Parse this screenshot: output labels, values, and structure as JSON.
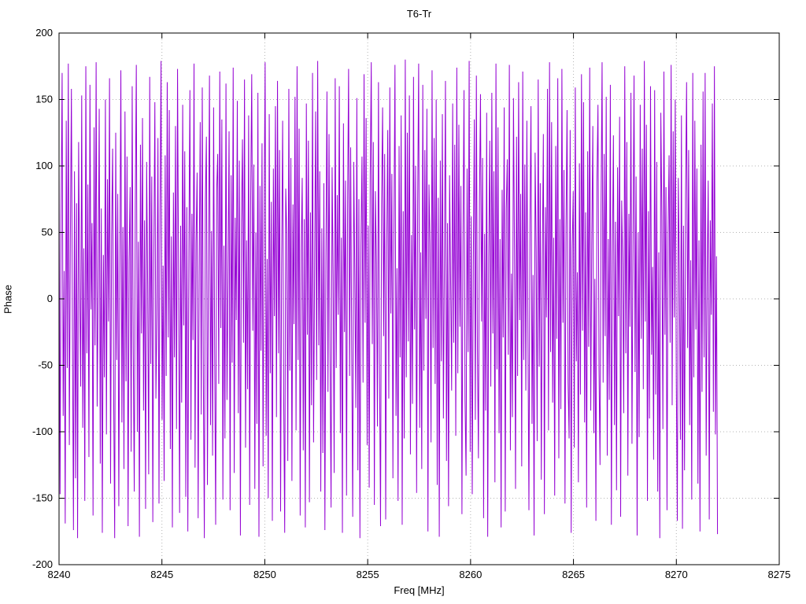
{
  "chart_data": {
    "type": "line",
    "title": "T6-Tr",
    "xlabel": "Freq [MHz]",
    "ylabel": "Phase",
    "xlim": [
      8240,
      8275
    ],
    "ylim": [
      -200,
      200
    ],
    "xticks": [
      8240,
      8245,
      8250,
      8255,
      8260,
      8265,
      8270,
      8275
    ],
    "yticks": [
      -200,
      -150,
      -100,
      -50,
      0,
      50,
      100,
      150,
      200
    ],
    "grid": true,
    "legend": "none",
    "line_color": "#9400D3",
    "grid_color": "#b3b3b3",
    "series": [
      {
        "name": "T6-Tr",
        "x_start": 8240,
        "x_end": 8272,
        "n_points": 640,
        "y_range": [
          -180,
          180
        ],
        "values": [
          102,
          -147,
          63,
          170,
          -88,
          21,
          -169,
          134,
          -52,
          177,
          -110,
          45,
          158,
          -23,
          -174,
          96,
          -135,
          72,
          -180,
          118,
          14,
          -66,
          153,
          -97,
          38,
          -152,
          175,
          -41,
          86,
          -119,
          161,
          -8,
          57,
          -163,
          129,
          -35,
          178,
          -81,
          10,
          143,
          -124,
          68,
          -176,
          33,
          -59,
          150,
          -102,
          90,
          -17,
          166,
          -139,
          48,
          113,
          -71,
          -180,
          125,
          -46,
          79,
          -156,
          19,
          172,
          -93,
          54,
          -128,
          141,
          -62,
          107,
          -171,
          28,
          84,
          -115,
          160,
          -37,
          -145,
          70,
          176,
          -100,
          43,
          -179,
          116,
          -26,
          136,
          -84,
          59,
          -158,
          103,
          11,
          -132,
          167,
          -49,
          92,
          -168,
          34,
          148,
          -75,
          -12,
          121,
          -154,
          66,
          179,
          -91,
          25,
          -137,
          108,
          -58,
          163,
          -29,
          142,
          -113,
          47,
          -172,
          80,
          -44,
          130,
          -98,
          173,
          15,
          -161,
          55,
          -78,
          146,
          -20,
          111,
          -149,
          69,
          -175,
          37,
          157,
          -106,
          64,
          -31,
          177,
          -127,
          42,
          95,
          -165,
          18,
          133,
          -87,
          159,
          -53,
          -180,
          74,
          122,
          -140,
          29,
          168,
          -95,
          51,
          -118,
          144,
          -36,
          -170,
          82,
          109,
          -64,
          171,
          -22,
          135,
          -151,
          40,
          -105,
          162,
          -76,
          13,
          126,
          -159,
          93,
          -48,
          174,
          -131,
          61,
          -16,
          149,
          -86,
          104,
          -178,
          58,
          120,
          -33,
          165,
          -112,
          44,
          -68,
          138,
          -155,
          77,
          169,
          -24,
          101,
          -143,
          50,
          -94,
          155,
          -179,
          85,
          -39,
          117,
          -126,
          62,
          178,
          -103,
          30,
          -150,
          139,
          -56,
          73,
          -167,
          98,
          -13,
          145,
          -89,
          164,
          -41,
          112,
          -160,
          26,
          134,
          -72,
          -176,
          83,
          49,
          -122,
          158,
          -54,
          106,
          -137,
          71,
          -19,
          152,
          -99,
          175,
          -46,
          128,
          -163,
          36,
          91,
          -114,
          60,
          -172,
          147,
          -27,
          119,
          -153,
          65,
          -80,
          170,
          -108,
          22,
          141,
          -61,
          179,
          -35,
          96,
          -145,
          53,
          -116,
          87,
          -174,
          31,
          156,
          -70,
          124,
          -42,
          -157,
          99,
          16,
          -131,
          166,
          -52,
          78,
          -12,
          160,
          -101,
          46,
          -176,
          132,
          -25,
          89,
          -148,
          67,
          173,
          -58,
          114,
          -37,
          -164,
          103,
          21,
          -82,
          151,
          -129,
          75,
          -180,
          40,
          107,
          -63,
          169,
          -18,
          136,
          -110,
          55,
          -142,
          92,
          178,
          -34,
          118,
          -155,
          81,
          26,
          -96,
          163,
          -50,
          -171,
          72,
          144,
          -28,
          109,
          -166,
          39,
          127,
          -75,
          159,
          -11,
          94,
          -135,
          52,
          176,
          -88,
          23,
          -152,
          115,
          -44,
          138,
          -170,
          66,
          -105,
          180,
          -59,
          125,
          -32,
          153,
          -117,
          48,
          -79,
          167,
          -23,
          100,
          -146,
          70,
          177,
          -97,
          35,
          -128,
          161,
          -54,
          112,
          -15,
          143,
          -175,
          86,
          41,
          -108,
          172,
          -37,
          121,
          -64,
          150,
          -140,
          76,
          -179,
          104,
          -47,
          139,
          -90,
          28,
          164,
          -122,
          57,
          -156,
          93,
          14,
          -69,
          147,
          -33,
          116,
          -103,
          174,
          -56,
          131,
          -21,
          85,
          -162,
          43,
          157,
          -76,
          -133,
          98,
          -40,
          179,
          -115,
          62,
          -147,
          24,
          135,
          -91,
          168,
          -38,
          -120,
          73,
          154,
          -17,
          106,
          -165,
          49,
          -84,
          140,
          -179,
          31,
          119,
          -66,
          155,
          -26,
          96,
          -138,
          177,
          -53,
          129,
          -101,
          45,
          -172,
          82,
          -29,
          144,
          -160,
          68,
          105,
          -42,
          176,
          -114,
          19,
          -89,
          151,
          36,
          -143,
          122,
          -58,
          163,
          -16,
          79,
          -126,
          171,
          -46,
          101,
          -69,
          134,
          -22,
          -159,
          56,
          145,
          -94,
          18,
          -178,
          110,
          37,
          -107,
          165,
          -51,
          87,
          -136,
          28,
          124,
          -162,
          69,
          -14,
          158,
          -99,
          178,
          -40,
          133,
          -78,
          46,
          -148,
          115,
          -30,
          166,
          -120,
          60,
          -83,
          173,
          -18,
          97,
          -154,
          53,
          142,
          -63,
          -105,
          127,
          -176,
          38,
          81,
          -112,
          159,
          -47,
          20,
          -138,
          102,
          -72,
          169,
          -24,
          148,
          -93,
          65,
          -157,
          111,
          -36,
          174,
          -84,
          42,
          130,
          -101,
          15,
          -167,
          88,
          146,
          -52,
          -125,
          70,
          178,
          -63,
          109,
          -28,
          152,
          -118,
          45,
          -76,
          161,
          -170,
          33,
          123,
          -95,
          58,
          -144,
          99,
          -13,
          137,
          -164,
          74,
          26,
          -86,
          175,
          -41,
          118,
          -133,
          64,
          -21,
          155,
          -109,
          39,
          168,
          -55,
          92,
          -178,
          50,
          -104,
          146,
          -30,
          113,
          -68,
          179,
          -17,
          131,
          -152,
          66,
          -90,
          160,
          -42,
          24,
          -121,
          157,
          -72,
          103,
          -145,
          35,
          -180,
          140,
          62,
          -98,
          171,
          -27,
          84,
          -159,
          48,
          108,
          -33,
          176,
          -80,
          126,
          -14,
          150,
          -60,
          -167,
          91,
          19,
          -106,
          138,
          -173,
          55,
          -129,
          77,
          163,
          -37,
          112,
          -95,
          29,
          -151,
          170,
          -59,
          134,
          -23,
          98,
          -139,
          44,
          -175,
          116,
          -70,
          156,
          -44,
          170,
          -118,
          21,
          89,
          -166,
          59,
          -12,
          147,
          -85,
          175,
          -102,
          32,
          -177
        ]
      }
    ]
  }
}
